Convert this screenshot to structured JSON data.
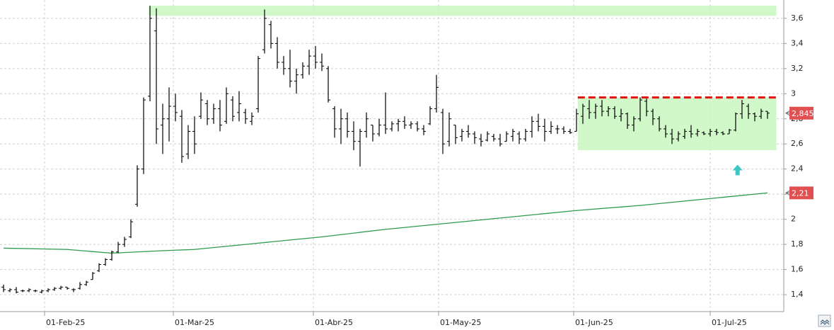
{
  "chart_data": {
    "type": "ohlc",
    "xlim": [
      -0.56,
      122.56
    ],
    "ylim": [
      1.265,
      3.746
    ],
    "grid": true,
    "xticks": [
      {
        "value": 6.44,
        "label": "01-Feb-25"
      },
      {
        "value": 26.67,
        "label": "01-Mar-25"
      },
      {
        "value": 48.67,
        "label": "01-Abr-25"
      },
      {
        "value": 68.33,
        "label": "01-May-25"
      },
      {
        "value": 89.56,
        "label": "01-Jun-25"
      },
      {
        "value": 111,
        "label": "01-Jul-25"
      }
    ],
    "yticks": [
      {
        "value": 1.4,
        "label": "1,4"
      },
      {
        "value": 1.6,
        "label": "1,6"
      },
      {
        "value": 1.8,
        "label": "1,8"
      },
      2,
      {
        "value": 2.2,
        "label": "2,2"
      },
      {
        "value": 2.4,
        "label": "2,4"
      },
      {
        "value": 2.6,
        "label": "2,6"
      },
      {
        "value": 2.8,
        "label": "2,8"
      },
      3,
      {
        "value": 3.2,
        "label": "3,2"
      },
      {
        "value": 3.4,
        "label": "3,4"
      },
      {
        "value": 3.6,
        "label": "3,6"
      }
    ],
    "color": "#000000",
    "x": [
      0,
      1,
      2,
      3,
      4,
      5,
      6,
      7,
      8,
      9,
      10,
      11,
      12,
      13,
      14,
      15,
      16,
      17,
      18,
      19,
      20,
      21,
      22,
      23,
      24,
      25,
      26,
      27,
      28,
      29,
      30,
      31,
      32,
      33,
      34,
      35,
      36,
      37,
      38,
      39,
      40,
      41,
      42,
      43,
      44,
      45,
      46,
      47,
      48,
      49,
      50,
      51,
      52,
      53,
      54,
      55,
      56,
      57,
      58,
      59,
      60,
      61,
      62,
      63,
      64,
      65,
      66,
      67,
      68,
      69,
      70,
      71,
      72,
      73,
      74,
      75,
      76,
      77,
      78,
      79,
      80,
      81,
      82,
      83,
      84,
      85,
      86,
      87,
      88,
      89,
      90,
      91,
      92,
      93,
      94,
      95,
      96,
      97,
      98,
      99,
      100,
      101,
      102,
      103,
      104,
      105,
      106,
      107,
      108,
      109,
      110,
      111,
      112,
      113,
      114,
      115,
      116,
      117,
      118,
      119,
      120
    ],
    "open": [
      1.46,
      1.43,
      1.44,
      1.43,
      1.43,
      1.43,
      1.42,
      1.43,
      1.44,
      1.45,
      1.46,
      1.44,
      1.45,
      1.48,
      1.52,
      1.59,
      1.64,
      1.68,
      1.74,
      1.8,
      1.86,
      2.12,
      2.4,
      2.98,
      3.5,
      2.75,
      2.8,
      2.9,
      2.82,
      2.52,
      2.7,
      2.82,
      2.92,
      2.8,
      2.88,
      2.78,
      2.95,
      2.85,
      2.85,
      2.78,
      2.88,
      3.35,
      3.55,
      3.4,
      3.25,
      3.2,
      3.1,
      3.15,
      3.22,
      3.3,
      3.25,
      3.2,
      2.88,
      2.72,
      2.8,
      2.7,
      2.62,
      2.7,
      2.75,
      2.68,
      2.75,
      2.72,
      2.76,
      2.78,
      2.75,
      2.76,
      2.72,
      2.76,
      2.88,
      2.85,
      2.62,
      2.75,
      2.66,
      2.7,
      2.68,
      2.64,
      2.63,
      2.66,
      2.64,
      2.62,
      2.66,
      2.68,
      2.64,
      2.7,
      2.78,
      2.74,
      2.7,
      2.72,
      2.72,
      2.7,
      2.7,
      2.82,
      2.88,
      2.85,
      2.9,
      2.86,
      2.88,
      2.82,
      2.84,
      2.75,
      2.8,
      2.94,
      2.86,
      2.8,
      2.72,
      2.68,
      2.64,
      2.66,
      2.7,
      2.68,
      2.69,
      2.68,
      2.7,
      2.69,
      2.68,
      2.71,
      2.84,
      2.9,
      2.84,
      2.82,
      2.86
    ],
    "high": [
      1.48,
      1.45,
      1.46,
      1.44,
      1.45,
      1.44,
      1.44,
      1.45,
      1.46,
      1.47,
      1.46,
      1.45,
      1.5,
      1.51,
      1.58,
      1.65,
      1.69,
      1.75,
      1.82,
      1.86,
      2.0,
      2.43,
      2.97,
      3.7,
      3.68,
      2.92,
      3.05,
      3.0,
      2.87,
      2.75,
      2.82,
      3.01,
      2.95,
      2.92,
      2.95,
      3.05,
      2.98,
      3.02,
      2.88,
      2.85,
      3.3,
      3.67,
      3.58,
      3.45,
      3.3,
      3.35,
      3.2,
      3.25,
      3.35,
      3.38,
      3.32,
      3.22,
      2.9,
      2.88,
      2.85,
      2.78,
      2.72,
      2.85,
      2.75,
      2.8,
      3.01,
      2.78,
      2.8,
      2.82,
      2.78,
      2.78,
      2.75,
      2.9,
      3.15,
      2.88,
      2.85,
      2.75,
      2.72,
      2.75,
      2.7,
      2.68,
      2.7,
      2.68,
      2.68,
      2.7,
      2.72,
      2.7,
      2.72,
      2.82,
      2.84,
      2.8,
      2.78,
      2.75,
      2.74,
      2.72,
      2.88,
      2.92,
      2.95,
      2.92,
      2.95,
      2.9,
      2.9,
      2.88,
      2.85,
      2.82,
      2.97,
      2.96,
      2.88,
      2.82,
      2.75,
      2.72,
      2.7,
      2.72,
      2.75,
      2.72,
      2.7,
      2.72,
      2.72,
      2.7,
      2.72,
      2.85,
      2.95,
      2.92,
      2.85,
      2.88,
      2.86
    ],
    "low": [
      1.42,
      1.42,
      1.41,
      1.42,
      1.42,
      1.42,
      1.41,
      1.42,
      1.43,
      1.44,
      1.44,
      1.42,
      1.44,
      1.47,
      1.52,
      1.58,
      1.63,
      1.67,
      1.73,
      1.78,
      1.85,
      2.1,
      2.36,
      2.94,
      2.6,
      2.52,
      2.62,
      2.78,
      2.45,
      2.48,
      2.52,
      2.8,
      2.75,
      2.76,
      2.7,
      2.76,
      2.78,
      2.78,
      2.76,
      2.75,
      2.85,
      3.32,
      3.36,
      3.2,
      3.15,
      3.05,
      3.0,
      3.12,
      3.15,
      3.2,
      3.18,
      2.93,
      2.65,
      2.6,
      2.65,
      2.55,
      2.42,
      2.65,
      2.62,
      2.66,
      2.68,
      2.7,
      2.7,
      2.72,
      2.72,
      2.7,
      2.67,
      2.75,
      2.85,
      2.52,
      2.58,
      2.6,
      2.62,
      2.65,
      2.6,
      2.58,
      2.62,
      2.62,
      2.58,
      2.62,
      2.62,
      2.6,
      2.62,
      2.65,
      2.7,
      2.62,
      2.68,
      2.68,
      2.68,
      2.68,
      2.7,
      2.76,
      2.8,
      2.8,
      2.82,
      2.82,
      2.8,
      2.78,
      2.72,
      2.7,
      2.78,
      2.82,
      2.75,
      2.7,
      2.65,
      2.6,
      2.62,
      2.64,
      2.65,
      2.66,
      2.67,
      2.66,
      2.67,
      2.67,
      2.68,
      2.7,
      2.8,
      2.8,
      2.78,
      2.8,
      2.8
    ],
    "close": [
      1.44,
      1.44,
      1.42,
      1.43,
      1.44,
      1.43,
      1.43,
      1.44,
      1.45,
      1.46,
      1.45,
      1.44,
      1.48,
      1.5,
      1.57,
      1.64,
      1.68,
      1.74,
      1.8,
      1.84,
      1.98,
      2.4,
      2.95,
      3.6,
      2.72,
      2.8,
      2.9,
      2.85,
      2.5,
      2.7,
      2.6,
      2.95,
      2.8,
      2.88,
      2.75,
      3.0,
      2.82,
      2.92,
      2.8,
      2.82,
      3.28,
      3.6,
      3.4,
      3.25,
      3.2,
      3.1,
      3.15,
      3.22,
      3.3,
      3.25,
      3.22,
      2.95,
      2.72,
      2.8,
      2.7,
      2.62,
      2.7,
      2.8,
      2.68,
      2.75,
      2.72,
      2.76,
      2.78,
      2.75,
      2.76,
      2.72,
      2.7,
      2.88,
      3.05,
      2.6,
      2.8,
      2.65,
      2.7,
      2.68,
      2.65,
      2.62,
      2.68,
      2.64,
      2.6,
      2.68,
      2.7,
      2.64,
      2.7,
      2.78,
      2.74,
      2.7,
      2.74,
      2.72,
      2.7,
      2.69,
      2.84,
      2.9,
      2.85,
      2.9,
      2.86,
      2.88,
      2.82,
      2.84,
      2.75,
      2.8,
      2.95,
      2.86,
      2.8,
      2.72,
      2.68,
      2.64,
      2.68,
      2.7,
      2.68,
      2.7,
      2.68,
      2.7,
      2.69,
      2.68,
      2.71,
      2.84,
      2.92,
      2.84,
      2.82,
      2.86,
      2.845
    ],
    "moving_average": {
      "color": "#2e9b4f",
      "x": [
        0,
        10,
        17,
        25,
        30,
        40,
        50,
        60,
        70,
        80,
        90,
        100,
        110,
        120
      ],
      "values": [
        1.77,
        1.76,
        1.73,
        1.75,
        1.76,
        1.81,
        1.86,
        1.92,
        1.97,
        2.02,
        2.07,
        2.11,
        2.16,
        2.21
      ]
    },
    "zones": [
      {
        "color": "#c8f7c0",
        "x": [
          22.8,
          121.4
        ],
        "y": [
          3.62,
          3.7
        ]
      },
      {
        "color": "#c8f7c0",
        "x": [
          90.2,
          121.4
        ],
        "y": [
          2.55,
          2.97
        ]
      }
    ],
    "resistance": {
      "color": "#e01010",
      "x": [
        90.2,
        121.4
      ],
      "value": 2.97
    },
    "arrow": {
      "color": "#3cc6c6",
      "x": 115.3,
      "y": 2.39
    },
    "price_labels": [
      {
        "color": "#e05050",
        "value": 2.845,
        "label": "2,845"
      },
      {
        "color": "#e05050",
        "value": 2.21,
        "label": "2,21"
      }
    ]
  }
}
